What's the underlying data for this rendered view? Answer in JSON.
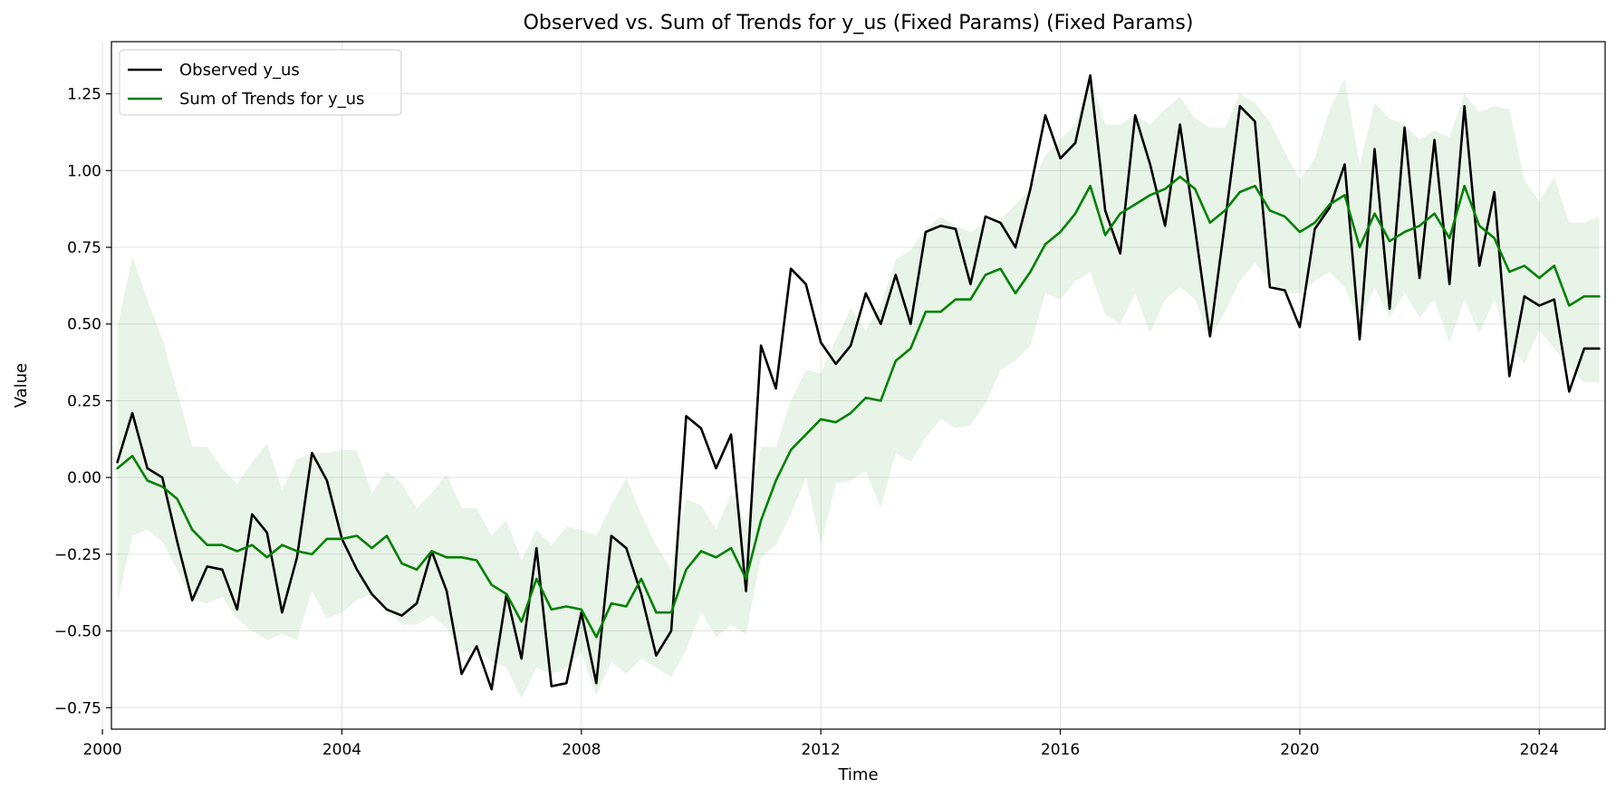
{
  "chart_data": {
    "type": "line",
    "title": "Observed vs. Sum of Trends for y_us (Fixed Params) (Fixed Params)",
    "xlabel": "Time",
    "ylabel": "Value",
    "xlim": [
      2000.15,
      2025.1
    ],
    "ylim": [
      -0.82,
      1.42
    ],
    "x_ticks": [
      2000,
      2004,
      2008,
      2012,
      2016,
      2020,
      2024
    ],
    "x_tick_labels": [
      "2000",
      "2004",
      "2008",
      "2012",
      "2016",
      "2020",
      "2024"
    ],
    "y_ticks": [
      -0.75,
      -0.5,
      -0.25,
      0.0,
      0.25,
      0.5,
      0.75,
      1.0,
      1.25
    ],
    "y_tick_labels": [
      "−0.75",
      "−0.50",
      "−0.25",
      "0.00",
      "0.25",
      "0.50",
      "0.75",
      "1.00",
      "1.25"
    ],
    "grid": true,
    "legend_position": "top-left",
    "x": [
      2000.25,
      2000.5,
      2000.75,
      2001.0,
      2001.25,
      2001.5,
      2001.75,
      2002.0,
      2002.25,
      2002.5,
      2002.75,
      2003.0,
      2003.25,
      2003.5,
      2003.75,
      2004.0,
      2004.25,
      2004.5,
      2004.75,
      2005.0,
      2005.25,
      2005.5,
      2005.75,
      2006.0,
      2006.25,
      2006.5,
      2006.75,
      2007.0,
      2007.25,
      2007.5,
      2007.75,
      2008.0,
      2008.25,
      2008.5,
      2008.75,
      2009.0,
      2009.25,
      2009.5,
      2009.75,
      2010.0,
      2010.25,
      2010.5,
      2010.75,
      2011.0,
      2011.25,
      2011.5,
      2011.75,
      2012.0,
      2012.25,
      2012.5,
      2012.75,
      2013.0,
      2013.25,
      2013.5,
      2013.75,
      2014.0,
      2014.25,
      2014.5,
      2014.75,
      2015.0,
      2015.25,
      2015.5,
      2015.75,
      2016.0,
      2016.25,
      2016.5,
      2016.75,
      2017.0,
      2017.25,
      2017.5,
      2017.75,
      2018.0,
      2018.25,
      2018.5,
      2018.75,
      2019.0,
      2019.25,
      2019.5,
      2019.75,
      2020.0,
      2020.25,
      2020.5,
      2020.75,
      2021.0,
      2021.25,
      2021.5,
      2021.75,
      2022.0,
      2022.25,
      2022.5,
      2022.75,
      2023.0,
      2023.25,
      2023.5,
      2023.75,
      2024.0,
      2024.25,
      2024.5,
      2024.75,
      2025.0
    ],
    "series": [
      {
        "name": "Observed y_us",
        "color": "#000000",
        "values": [
          0.05,
          0.21,
          0.03,
          0.0,
          -0.21,
          -0.4,
          -0.29,
          -0.3,
          -0.43,
          -0.12,
          -0.18,
          -0.44,
          -0.26,
          0.08,
          -0.01,
          -0.2,
          -0.3,
          -0.38,
          -0.43,
          -0.45,
          -0.41,
          -0.24,
          -0.37,
          -0.64,
          -0.55,
          -0.69,
          -0.38,
          -0.59,
          -0.23,
          -0.68,
          -0.67,
          -0.44,
          -0.67,
          -0.19,
          -0.23,
          -0.38,
          -0.58,
          -0.5,
          0.2,
          0.16,
          0.03,
          0.14,
          -0.37,
          0.43,
          0.29,
          0.68,
          0.63,
          0.44,
          0.37,
          0.43,
          0.6,
          0.5,
          0.66,
          0.5,
          0.8,
          0.82,
          0.81,
          0.63,
          0.85,
          0.83,
          0.75,
          0.94,
          1.18,
          1.04,
          1.09,
          1.31,
          0.87,
          0.73,
          1.18,
          1.02,
          0.82,
          1.15,
          0.81,
          0.46,
          0.83,
          1.21,
          1.16,
          0.62,
          0.61,
          0.49,
          0.81,
          0.88,
          1.02,
          0.45,
          1.07,
          0.55,
          1.14,
          0.65,
          1.1,
          0.63,
          1.21,
          0.69,
          0.93,
          0.33,
          0.59,
          0.56,
          0.58,
          0.28,
          0.42,
          0.42
        ]
      },
      {
        "name": "Sum of Trends for y_us",
        "color": "#008000",
        "values": [
          0.03,
          0.07,
          -0.01,
          -0.03,
          -0.07,
          -0.17,
          -0.22,
          -0.22,
          -0.24,
          -0.22,
          -0.26,
          -0.22,
          -0.24,
          -0.25,
          -0.2,
          -0.2,
          -0.19,
          -0.23,
          -0.19,
          -0.28,
          -0.3,
          -0.24,
          -0.26,
          -0.26,
          -0.27,
          -0.35,
          -0.38,
          -0.47,
          -0.33,
          -0.43,
          -0.42,
          -0.43,
          -0.52,
          -0.41,
          -0.42,
          -0.33,
          -0.44,
          -0.44,
          -0.3,
          -0.24,
          -0.26,
          -0.23,
          -0.33,
          -0.14,
          -0.01,
          0.09,
          0.14,
          0.19,
          0.18,
          0.21,
          0.26,
          0.25,
          0.38,
          0.42,
          0.54,
          0.54,
          0.58,
          0.58,
          0.66,
          0.68,
          0.6,
          0.67,
          0.76,
          0.8,
          0.86,
          0.95,
          0.79,
          0.86,
          0.89,
          0.92,
          0.94,
          0.98,
          0.94,
          0.83,
          0.87,
          0.93,
          0.95,
          0.87,
          0.85,
          0.8,
          0.83,
          0.89,
          0.92,
          0.75,
          0.86,
          0.77,
          0.8,
          0.82,
          0.86,
          0.78,
          0.95,
          0.82,
          0.78,
          0.67,
          0.69,
          0.65,
          0.69,
          0.56,
          0.59,
          0.59
        ]
      }
    ],
    "band": {
      "color": "#008000",
      "opacity": 0.09,
      "upper": [
        0.49,
        0.72,
        0.58,
        0.45,
        0.28,
        0.1,
        0.1,
        0.03,
        -0.02,
        0.05,
        0.11,
        -0.04,
        0.06,
        0.08,
        0.08,
        0.09,
        0.09,
        -0.05,
        0.02,
        -0.02,
        -0.1,
        -0.05,
        0.01,
        -0.1,
        -0.1,
        -0.19,
        -0.14,
        -0.27,
        -0.17,
        -0.22,
        -0.16,
        -0.17,
        -0.19,
        -0.09,
        0.0,
        -0.12,
        -0.22,
        -0.3,
        -0.07,
        -0.09,
        -0.17,
        -0.05,
        -0.15,
        0.1,
        0.1,
        0.25,
        0.35,
        0.34,
        0.45,
        0.55,
        0.48,
        0.56,
        0.71,
        0.74,
        0.81,
        0.85,
        0.82,
        0.8,
        0.83,
        0.84,
        0.89,
        0.94,
        1.05,
        1.1,
        1.15,
        1.3,
        1.15,
        1.15,
        1.18,
        1.15,
        1.2,
        1.24,
        1.17,
        1.14,
        1.14,
        1.25,
        1.22,
        1.16,
        1.06,
        0.97,
        1.04,
        1.2,
        1.3,
        1.02,
        1.22,
        1.17,
        1.15,
        1.1,
        1.13,
        1.11,
        1.25,
        1.19,
        1.21,
        1.2,
        0.97,
        0.9,
        0.98,
        0.83,
        0.83,
        0.85
      ],
      "lower": [
        -0.41,
        -0.19,
        -0.17,
        -0.21,
        -0.3,
        -0.4,
        -0.41,
        -0.39,
        -0.46,
        -0.5,
        -0.53,
        -0.51,
        -0.53,
        -0.37,
        -0.46,
        -0.44,
        -0.4,
        -0.38,
        -0.43,
        -0.48,
        -0.48,
        -0.45,
        -0.49,
        -0.57,
        -0.56,
        -0.6,
        -0.62,
        -0.72,
        -0.62,
        -0.64,
        -0.62,
        -0.57,
        -0.71,
        -0.6,
        -0.64,
        -0.59,
        -0.62,
        -0.65,
        -0.56,
        -0.44,
        -0.52,
        -0.48,
        -0.51,
        -0.26,
        -0.22,
        -0.12,
        0.0,
        -0.22,
        -0.02,
        -0.01,
        0.02,
        -0.1,
        0.08,
        0.05,
        0.13,
        0.19,
        0.16,
        0.17,
        0.24,
        0.35,
        0.38,
        0.43,
        0.6,
        0.58,
        0.64,
        0.67,
        0.53,
        0.5,
        0.6,
        0.47,
        0.58,
        0.62,
        0.58,
        0.45,
        0.54,
        0.64,
        0.7,
        0.64,
        0.6,
        0.6,
        0.64,
        0.67,
        0.62,
        0.5,
        0.62,
        0.52,
        0.6,
        0.52,
        0.58,
        0.44,
        0.58,
        0.47,
        0.58,
        0.43,
        0.37,
        0.48,
        0.42,
        0.36,
        0.31,
        0.31
      ]
    }
  }
}
